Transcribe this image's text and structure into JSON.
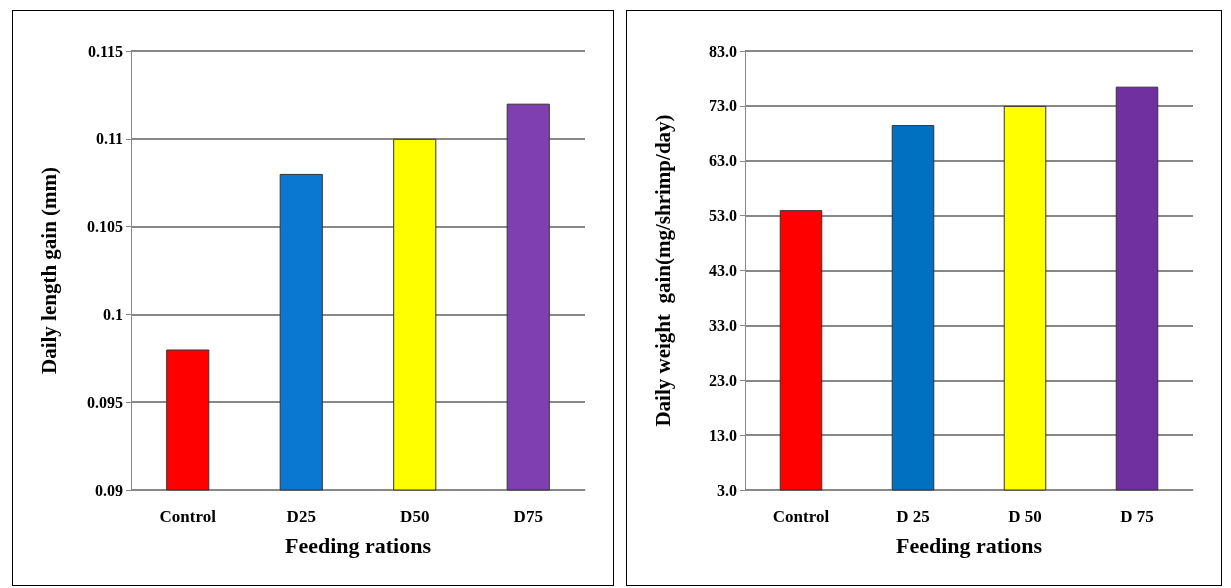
{
  "chart_data": [
    {
      "type": "bar",
      "xlabel": "Feeding rations",
      "ylabel": "Daily length gain (mm)",
      "categories": [
        "Control",
        "D25",
        "D50",
        "D75"
      ],
      "values": [
        0.098,
        0.108,
        0.11,
        0.112
      ],
      "colors": [
        "#ff0000",
        "#0a78d0",
        "#ffff00",
        "#7f3fb0"
      ],
      "ylim": [
        0.09,
        0.115
      ],
      "yticks": [
        0.09,
        0.095,
        0.1,
        0.105,
        0.11,
        0.115
      ],
      "grid": "y"
    },
    {
      "type": "bar",
      "xlabel": "Feeding rations",
      "ylabel": "Daily weight  gain(mg/shrimp/day)",
      "categories": [
        "Control",
        "D 25",
        "D 50",
        "D 75"
      ],
      "values": [
        54,
        69.5,
        73,
        76.5
      ],
      "colors": [
        "#ff0000",
        "#0070c0",
        "#ffff00",
        "#7030a0"
      ],
      "ylim": [
        3,
        83
      ],
      "yticks": [
        {
          "value": 3,
          "label": "3.0"
        },
        {
          "value": 13,
          "label": "13.0"
        },
        {
          "value": 23,
          "label": "23.0"
        },
        {
          "value": 33,
          "label": "33.0"
        },
        {
          "value": 43,
          "label": "43.0"
        },
        {
          "value": 53,
          "label": "53.0"
        },
        {
          "value": 63,
          "label": "63.0"
        },
        {
          "value": 73,
          "label": "73.0"
        },
        {
          "value": 83,
          "label": "83.0"
        }
      ],
      "grid": "y"
    }
  ]
}
